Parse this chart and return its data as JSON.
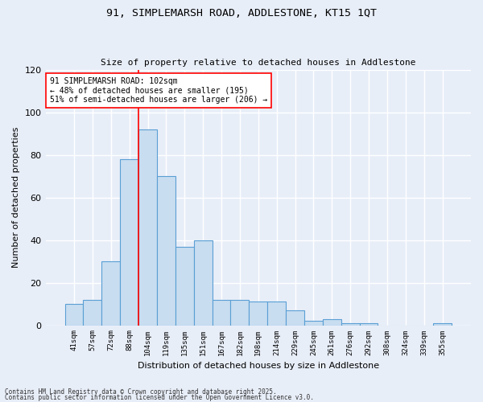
{
  "title_line1": "91, SIMPLEMARSH ROAD, ADDLESTONE, KT15 1QT",
  "title_line2": "Size of property relative to detached houses in Addlestone",
  "xlabel": "Distribution of detached houses by size in Addlestone",
  "ylabel": "Number of detached properties",
  "categories": [
    "41sqm",
    "57sqm",
    "72sqm",
    "88sqm",
    "104sqm",
    "119sqm",
    "135sqm",
    "151sqm",
    "167sqm",
    "182sqm",
    "198sqm",
    "214sqm",
    "229sqm",
    "245sqm",
    "261sqm",
    "276sqm",
    "292sqm",
    "308sqm",
    "324sqm",
    "339sqm",
    "355sqm"
  ],
  "values": [
    10,
    12,
    30,
    78,
    92,
    70,
    37,
    40,
    12,
    12,
    11,
    11,
    7,
    2,
    3,
    1,
    1,
    0,
    0,
    0,
    1
  ],
  "bar_color": "#c8ddf0",
  "bar_edge_color": "#5a9fd4",
  "red_line_x": 3.5,
  "annotation_text": "91 SIMPLEMARSH ROAD: 102sqm\n← 48% of detached houses are smaller (195)\n51% of semi-detached houses are larger (206) →",
  "ylim": [
    0,
    120
  ],
  "yticks": [
    0,
    20,
    40,
    60,
    80,
    100,
    120
  ],
  "footer_line1": "Contains HM Land Registry data © Crown copyright and database right 2025.",
  "footer_line2": "Contains public sector information licensed under the Open Government Licence v3.0.",
  "bg_color": "#e8eef8",
  "plot_bg_color": "#e8eef8",
  "grid_color": "#ffffff"
}
